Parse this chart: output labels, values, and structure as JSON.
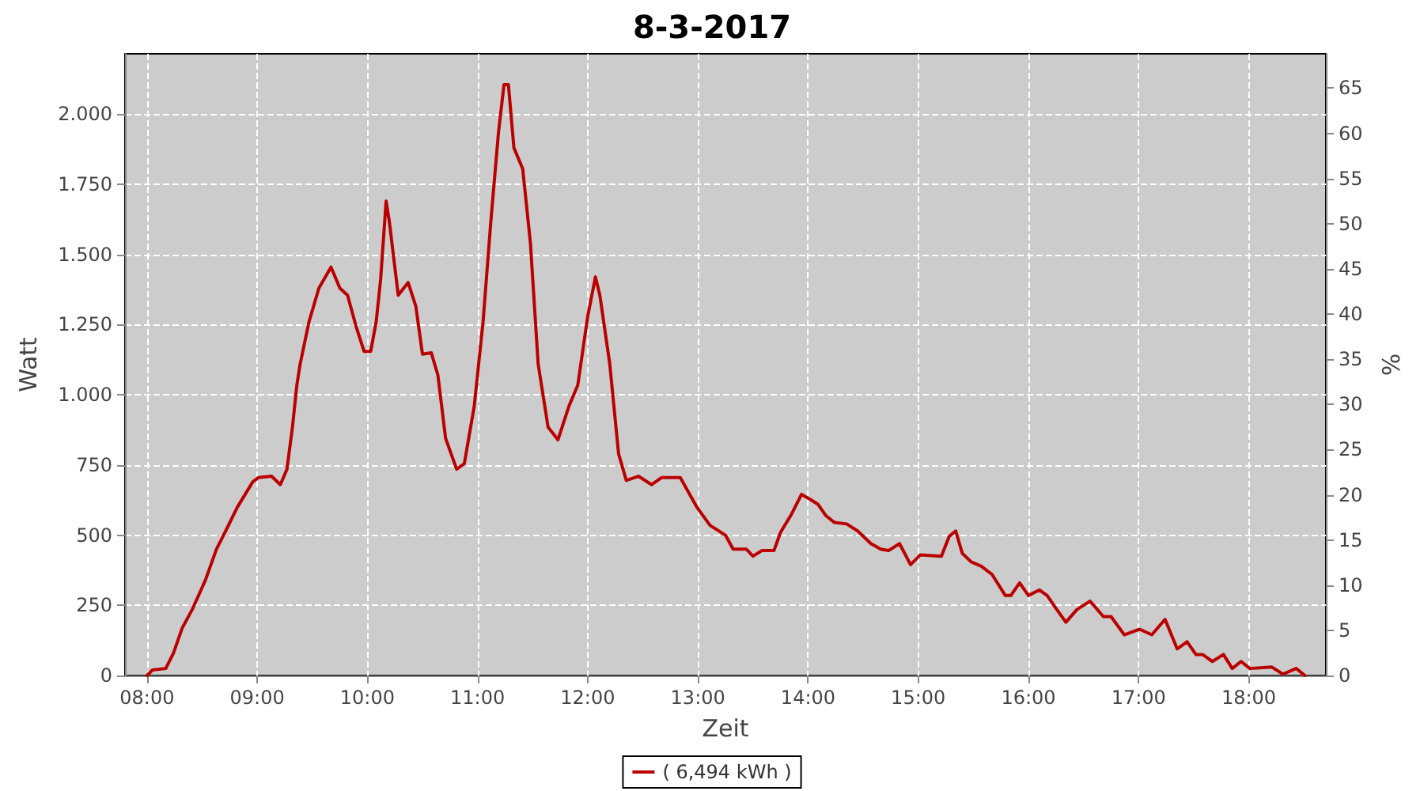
{
  "chart_data": {
    "type": "line",
    "title": "8-3-2017",
    "xlabel": "Zeit",
    "ylabel": "Watt",
    "y2label": "%",
    "xlim": [
      7.8,
      18.7
    ],
    "xticks": [
      {
        "value": 8,
        "label": "08:00"
      },
      {
        "value": 9,
        "label": "09:00"
      },
      {
        "value": 10,
        "label": "10:00"
      },
      {
        "value": 11,
        "label": "11:00"
      },
      {
        "value": 12,
        "label": "12:00"
      },
      {
        "value": 13,
        "label": "13:00"
      },
      {
        "value": 14,
        "label": "14:00"
      },
      {
        "value": 15,
        "label": "15:00"
      },
      {
        "value": 16,
        "label": "16:00"
      },
      {
        "value": 17,
        "label": "17:00"
      },
      {
        "value": 18,
        "label": "18:00"
      }
    ],
    "ylim": [
      0,
      2215
    ],
    "yticks": [
      0,
      250,
      500,
      750,
      {
        "value": 1000,
        "label": "1.000"
      },
      {
        "value": 1250,
        "label": "1.250"
      },
      {
        "value": 1500,
        "label": "1.500"
      },
      {
        "value": 1750,
        "label": "1.750"
      },
      {
        "value": 2000,
        "label": "2.000"
      }
    ],
    "y2lim": [
      0,
      68.8
    ],
    "y2ticks": [
      0,
      5,
      10,
      15,
      20,
      25,
      30,
      35,
      40,
      45,
      50,
      55,
      60,
      65
    ],
    "grid": true,
    "legend": "bottom",
    "marker": "none",
    "line_style": "solid",
    "series": [
      {
        "name": "( 6,494 kWh )",
        "color": "#bb0000",
        "x": [
          8.0,
          8.05,
          8.17,
          8.24,
          8.32,
          8.41,
          8.53,
          8.63,
          8.72,
          8.82,
          8.96,
          9.01,
          9.13,
          9.21,
          9.27,
          9.32,
          9.36,
          9.39,
          9.47,
          9.56,
          9.67,
          9.75,
          9.82,
          9.9,
          9.97,
          10.03,
          10.08,
          10.12,
          10.17,
          10.2,
          10.28,
          10.37,
          10.44,
          10.5,
          10.58,
          10.64,
          10.71,
          10.81,
          10.88,
          10.97,
          11.05,
          11.12,
          11.19,
          11.24,
          11.28,
          11.33,
          11.41,
          11.48,
          11.55,
          11.64,
          11.73,
          11.83,
          11.91,
          12.0,
          12.07,
          12.11,
          12.2,
          12.28,
          12.35,
          12.46,
          12.58,
          12.67,
          12.84,
          12.99,
          13.11,
          13.25,
          13.32,
          13.44,
          13.5,
          13.58,
          13.69,
          13.75,
          13.85,
          13.94,
          14.01,
          14.09,
          14.16,
          14.24,
          14.35,
          14.45,
          14.57,
          14.66,
          14.73,
          14.83,
          14.93,
          15.02,
          15.21,
          15.28,
          15.34,
          15.4,
          15.48,
          15.57,
          15.67,
          15.79,
          15.84,
          15.92,
          16.0,
          16.1,
          16.17,
          16.24,
          16.34,
          16.44,
          16.56,
          16.68,
          16.75,
          16.87,
          17.01,
          17.12,
          17.24,
          17.35,
          17.44,
          17.52,
          17.58,
          17.67,
          17.77,
          17.85,
          17.93,
          18.01,
          18.21,
          18.31,
          18.43,
          18.51
        ],
        "values": [
          0,
          20,
          25,
          80,
          170,
          235,
          340,
          450,
          520,
          600,
          690,
          705,
          710,
          680,
          735,
          885,
          1035,
          1110,
          1260,
          1380,
          1455,
          1380,
          1355,
          1240,
          1155,
          1155,
          1260,
          1410,
          1690,
          1615,
          1355,
          1400,
          1315,
          1145,
          1150,
          1070,
          845,
          735,
          755,
          960,
          1260,
          1615,
          1935,
          2105,
          2105,
          1880,
          1805,
          1540,
          1110,
          885,
          840,
          960,
          1035,
          1280,
          1420,
          1355,
          1110,
          790,
          695,
          710,
          680,
          705,
          705,
          600,
          535,
          500,
          450,
          450,
          425,
          445,
          445,
          510,
          575,
          645,
          630,
          610,
          570,
          545,
          540,
          515,
          470,
          450,
          445,
          470,
          395,
          430,
          425,
          495,
          515,
          435,
          405,
          390,
          360,
          285,
          285,
          330,
          285,
          305,
          285,
          245,
          190,
          235,
          265,
          210,
          210,
          145,
          165,
          145,
          200,
          95,
          120,
          75,
          75,
          50,
          75,
          25,
          50,
          25,
          30,
          5,
          25,
          0
        ]
      }
    ]
  }
}
